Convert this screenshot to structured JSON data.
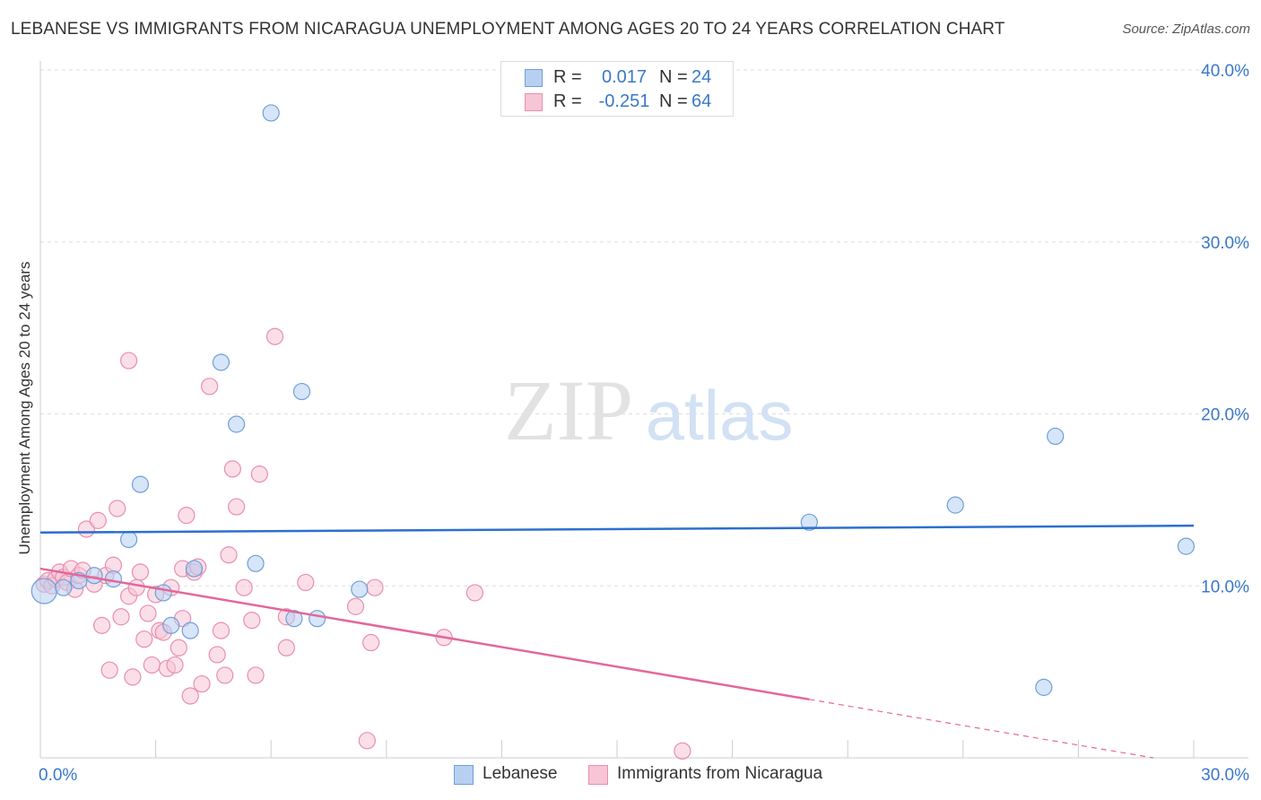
{
  "header": {
    "title": "LEBANESE VS IMMIGRANTS FROM NICARAGUA UNEMPLOYMENT AMONG AGES 20 TO 24 YEARS CORRELATION CHART",
    "source": "Source: ZipAtlas.com"
  },
  "watermark": {
    "zip": "ZIP",
    "atlas": "atlas"
  },
  "legend": {
    "r_label": "R =",
    "n_label": "N =",
    "series": [
      {
        "name": "Lebanese",
        "r": "0.017",
        "n": "24"
      },
      {
        "name": "Immigrants from Nicaragua",
        "r": "-0.251",
        "n": "64"
      }
    ]
  },
  "colors": {
    "lebanese_fill": "#b7d0f2",
    "lebanese_stroke": "#6f9fd8",
    "lebanese_line": "#2d6fcf",
    "nicaragua_fill": "#f7c5d6",
    "nicaragua_stroke": "#e98eae",
    "nicaragua_line": "#e3679a",
    "tick_label": "#3a78c9",
    "grid": "#dddddd"
  },
  "chart_data": {
    "type": "scatter",
    "title": "LEBANESE VS IMMIGRANTS FROM NICARAGUA UNEMPLOYMENT AMONG AGES 20 TO 24 YEARS CORRELATION CHART",
    "xlabel": "",
    "ylabel": "Unemployment Among Ages 20 to 24 years",
    "xlim": [
      0,
      30
    ],
    "ylim": [
      0,
      40
    ],
    "x_tick_labels": [
      {
        "value": 0,
        "label": "0.0%"
      },
      {
        "value": 30,
        "label": "30.0%"
      }
    ],
    "y_tick_labels": [
      {
        "value": 10,
        "label": "10.0%"
      },
      {
        "value": 20,
        "label": "20.0%"
      },
      {
        "value": 30,
        "label": "30.0%"
      },
      {
        "value": 40,
        "label": "40.0%"
      }
    ],
    "legend_position": "bottom-center",
    "series": [
      {
        "name": "Lebanese",
        "r": 0.017,
        "n": 24,
        "points": [
          [
            0.1,
            9.7
          ],
          [
            0.6,
            9.9
          ],
          [
            1.0,
            10.3
          ],
          [
            1.4,
            10.6
          ],
          [
            1.9,
            10.4
          ],
          [
            2.3,
            12.7
          ],
          [
            2.6,
            15.9
          ],
          [
            3.2,
            9.6
          ],
          [
            3.4,
            7.7
          ],
          [
            3.9,
            7.4
          ],
          [
            4.0,
            11.0
          ],
          [
            4.7,
            23.0
          ],
          [
            5.1,
            19.4
          ],
          [
            5.6,
            11.3
          ],
          [
            6.0,
            37.5
          ],
          [
            6.6,
            8.1
          ],
          [
            6.8,
            21.3
          ],
          [
            7.2,
            8.1
          ],
          [
            8.3,
            9.8
          ],
          [
            20.0,
            13.7
          ],
          [
            23.8,
            14.7
          ],
          [
            26.1,
            4.1
          ],
          [
            26.4,
            18.7
          ],
          [
            29.8,
            12.3
          ]
        ],
        "point_radii": [
          14,
          9,
          9,
          9,
          9,
          9,
          9,
          9,
          9,
          9,
          9,
          9,
          9,
          9,
          9,
          9,
          9,
          9,
          9,
          9,
          9,
          9,
          9,
          9
        ],
        "trend": {
          "x0": 0,
          "y0": 13.1,
          "x1": 30,
          "y1": 13.5
        }
      },
      {
        "name": "Immigrants from Nicaragua",
        "r": -0.251,
        "n": 64,
        "points": [
          [
            0.1,
            10.1
          ],
          [
            0.2,
            10.3
          ],
          [
            0.3,
            10.0
          ],
          [
            0.4,
            10.4
          ],
          [
            0.5,
            10.8
          ],
          [
            0.6,
            10.5
          ],
          [
            0.7,
            10.2
          ],
          [
            0.8,
            11.0
          ],
          [
            0.9,
            9.8
          ],
          [
            1.0,
            10.6
          ],
          [
            1.1,
            10.9
          ],
          [
            1.2,
            13.3
          ],
          [
            1.4,
            10.1
          ],
          [
            1.5,
            13.8
          ],
          [
            1.6,
            7.7
          ],
          [
            1.7,
            10.6
          ],
          [
            1.8,
            5.1
          ],
          [
            1.9,
            11.2
          ],
          [
            2.0,
            14.5
          ],
          [
            2.1,
            8.2
          ],
          [
            2.3,
            23.1
          ],
          [
            2.3,
            9.4
          ],
          [
            2.4,
            4.7
          ],
          [
            2.5,
            9.9
          ],
          [
            2.6,
            10.8
          ],
          [
            2.7,
            6.9
          ],
          [
            2.8,
            8.4
          ],
          [
            2.9,
            5.4
          ],
          [
            3.0,
            9.5
          ],
          [
            3.1,
            7.4
          ],
          [
            3.2,
            7.3
          ],
          [
            3.3,
            5.2
          ],
          [
            3.4,
            9.9
          ],
          [
            3.5,
            5.4
          ],
          [
            3.6,
            6.4
          ],
          [
            3.7,
            8.1
          ],
          [
            3.7,
            11.0
          ],
          [
            3.8,
            14.1
          ],
          [
            3.9,
            3.6
          ],
          [
            4.0,
            10.8
          ],
          [
            4.1,
            11.1
          ],
          [
            4.2,
            4.3
          ],
          [
            4.4,
            21.6
          ],
          [
            4.6,
            6.0
          ],
          [
            4.7,
            7.4
          ],
          [
            4.8,
            4.8
          ],
          [
            4.9,
            11.8
          ],
          [
            5.0,
            16.8
          ],
          [
            5.1,
            14.6
          ],
          [
            5.3,
            9.9
          ],
          [
            5.5,
            8.0
          ],
          [
            5.6,
            4.8
          ],
          [
            5.7,
            16.5
          ],
          [
            6.1,
            24.5
          ],
          [
            6.4,
            8.2
          ],
          [
            6.4,
            6.4
          ],
          [
            6.9,
            10.2
          ],
          [
            8.2,
            8.8
          ],
          [
            8.5,
            1.0
          ],
          [
            8.6,
            6.7
          ],
          [
            8.7,
            9.9
          ],
          [
            10.5,
            7.0
          ],
          [
            11.3,
            9.6
          ],
          [
            16.7,
            0.4
          ]
        ],
        "trend": {
          "x0": 0,
          "y0": 11.0,
          "x1": 20,
          "y1": 3.4
        },
        "trend_extension": {
          "x0": 20,
          "y0": 3.4,
          "x1": 30,
          "y1": -0.4
        }
      }
    ]
  }
}
